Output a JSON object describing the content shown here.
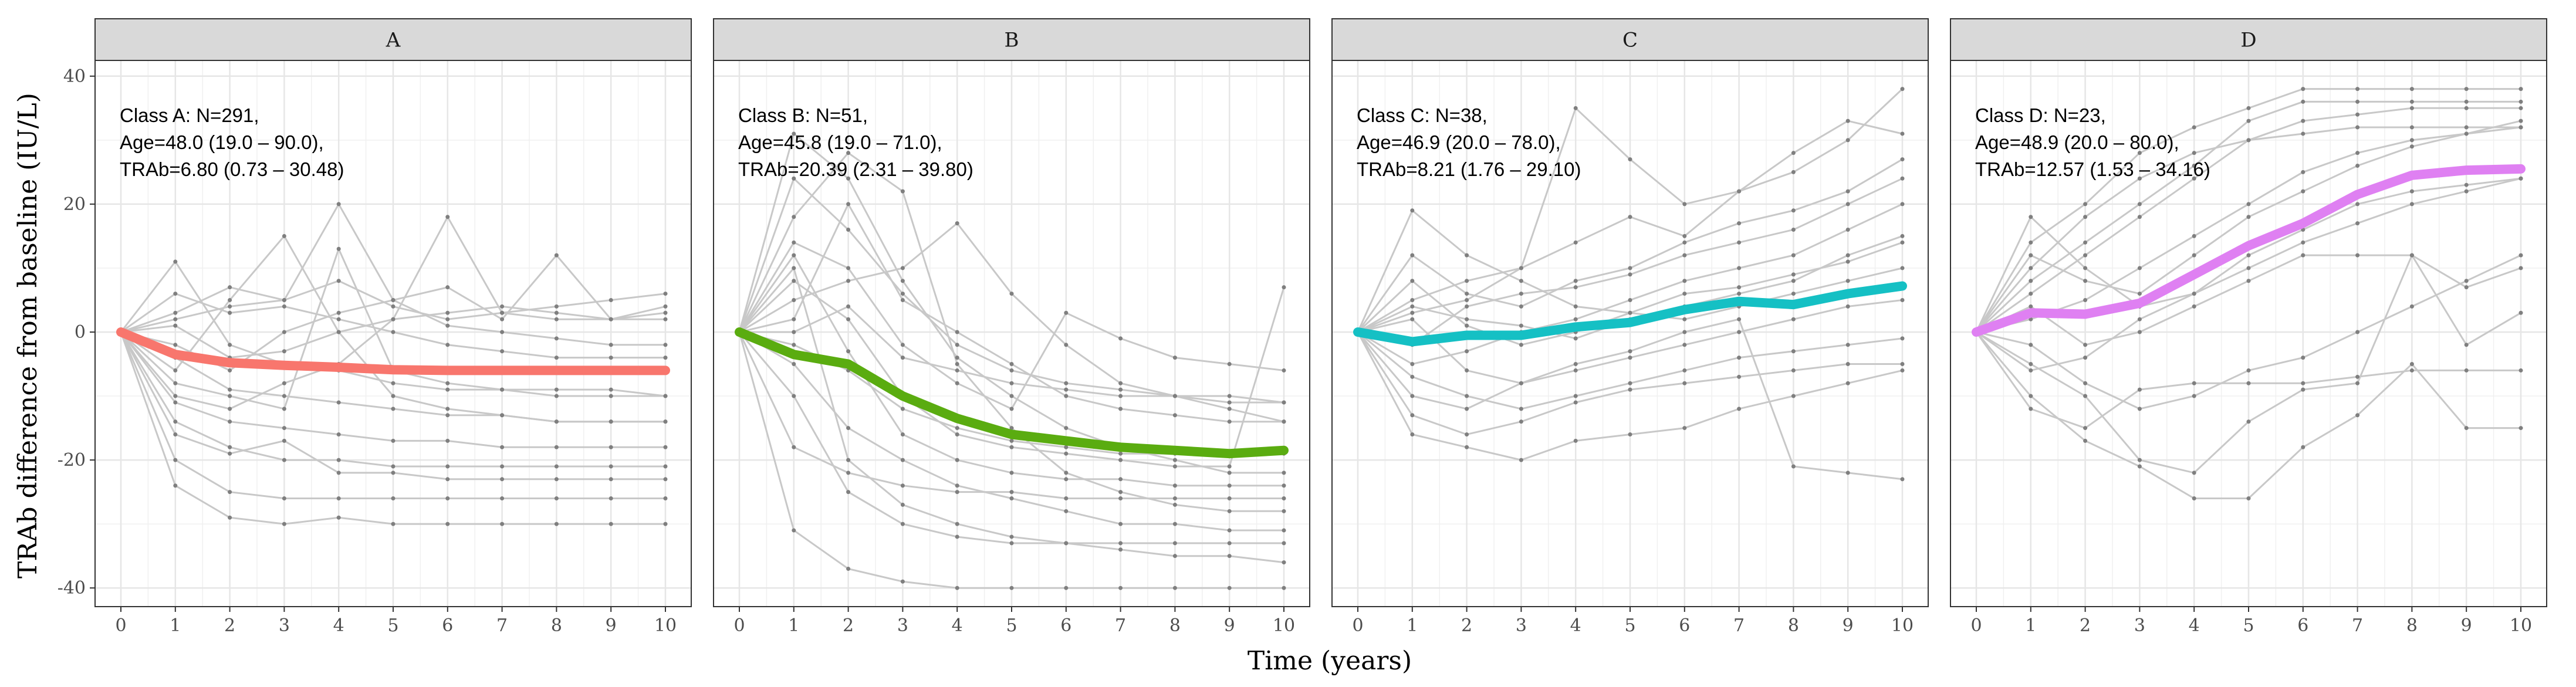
{
  "chart_data": {
    "type": "line",
    "ylabel": "TRAb difference from baseline (IU/L)",
    "xlabel": "Time (years)",
    "xlim": [
      0,
      10
    ],
    "ylim": [
      -42,
      42
    ],
    "xticks": [
      0,
      1,
      2,
      3,
      4,
      5,
      6,
      7,
      8,
      9,
      10
    ],
    "yticks": [
      40,
      20,
      0,
      -20,
      -40
    ],
    "x": [
      0,
      1,
      2,
      3,
      4,
      5,
      6,
      7,
      8,
      9,
      10
    ],
    "grid": true,
    "individual_color": "#c8c8c8",
    "point_color": "#7f7f7f",
    "panels": [
      {
        "strip": "A",
        "annotation": [
          "Class A: N=291,",
          "Age=48.0 (19.0 – 90.0),",
          "TRAb=6.80 (0.73 – 30.48)"
        ],
        "mean_color": "#f8766d",
        "mean": [
          0,
          -3.5,
          -4.8,
          -5.2,
          -5.5,
          -5.9,
          -6.0,
          -6.0,
          -6.0,
          -6.0,
          -6.0
        ],
        "individuals": [
          [
            0,
            11,
            -2,
            -5,
            -6,
            -8,
            -9,
            -9,
            -10,
            -10,
            -10
          ],
          [
            0,
            3,
            7,
            5,
            8,
            4,
            2,
            3,
            4,
            5,
            6
          ],
          [
            0,
            -24,
            -29,
            -30,
            -29,
            -30,
            -30,
            -30,
            -30,
            -30,
            -30
          ],
          [
            0,
            -20,
            -25,
            -26,
            -26,
            -26,
            -26,
            -26,
            -26,
            -26,
            -26
          ],
          [
            0,
            -6,
            5,
            15,
            0,
            -10,
            -12,
            -13,
            -14,
            -14,
            -14
          ],
          [
            0,
            2,
            4,
            5,
            20,
            5,
            1,
            0,
            -1,
            -2,
            -2
          ],
          [
            0,
            -10,
            -12,
            -8,
            -5,
            2,
            18,
            3,
            2,
            2,
            2
          ],
          [
            0,
            -2,
            -6,
            0,
            3,
            5,
            7,
            2,
            12,
            2,
            4
          ],
          [
            0,
            -14,
            -18,
            -20,
            -20,
            -21,
            -21,
            -21,
            -21,
            -21,
            -21
          ],
          [
            0,
            -8,
            -10,
            -12,
            13,
            -6,
            -8,
            -9,
            -9,
            -9,
            -10
          ],
          [
            0,
            6,
            3,
            4,
            2,
            0,
            -2,
            -3,
            -4,
            -4,
            -4
          ],
          [
            0,
            -16,
            -19,
            -17,
            -22,
            -22,
            -23,
            -23,
            -23,
            -23,
            -23
          ],
          [
            0,
            1,
            -4,
            -3,
            0,
            2,
            3,
            4,
            3,
            2,
            3
          ],
          [
            0,
            -11,
            -14,
            -15,
            -16,
            -17,
            -17,
            -18,
            -18,
            -18,
            -18
          ],
          [
            0,
            -4,
            -9,
            -10,
            -11,
            -12,
            -13,
            -13,
            -14,
            -14,
            -14
          ]
        ]
      },
      {
        "strip": "B",
        "annotation": [
          "Class B: N=51,",
          "Age=45.8 (19.0 – 71.0),",
          "TRAb=20.39 (2.31 – 39.80)"
        ],
        "mean_color": "#5aac10",
        "mean": [
          0,
          -3.5,
          -5.0,
          -10.0,
          -13.5,
          -16.0,
          -17.0,
          -18.0,
          -18.5,
          -19.0,
          -18.5
        ],
        "individuals": [
          [
            0,
            31,
            24,
            8,
            -4,
            -10,
            -15,
            -18,
            -20,
            -22,
            -22
          ],
          [
            0,
            18,
            28,
            22,
            -5,
            -15,
            -22,
            -25,
            -27,
            -28,
            -28
          ],
          [
            0,
            -31,
            -37,
            -39,
            -40,
            -40,
            -40,
            -40,
            -40,
            -40,
            -40
          ],
          [
            0,
            10,
            -20,
            -27,
            -30,
            -32,
            -33,
            -34,
            -35,
            -35,
            -36
          ],
          [
            0,
            5,
            8,
            10,
            17,
            6,
            -2,
            -8,
            -10,
            -12,
            -14
          ],
          [
            0,
            -10,
            -25,
            -30,
            -32,
            -33,
            -33,
            -33,
            -33,
            -33,
            -33
          ],
          [
            0,
            2,
            20,
            5,
            0,
            -5,
            -10,
            -12,
            -13,
            -14,
            -14
          ],
          [
            0,
            -5,
            -15,
            -20,
            -24,
            -26,
            -28,
            -30,
            -30,
            -31,
            -31
          ],
          [
            0,
            14,
            10,
            -2,
            -8,
            -12,
            3,
            -1,
            -4,
            -5,
            -6
          ],
          [
            0,
            -18,
            -22,
            -24,
            -25,
            -25,
            -26,
            -26,
            -26,
            -26,
            -26
          ],
          [
            0,
            8,
            2,
            -10,
            -16,
            -18,
            -19,
            -20,
            -21,
            -21,
            7
          ],
          [
            0,
            24,
            16,
            6,
            -2,
            -6,
            -8,
            -9,
            -10,
            -10,
            -11
          ],
          [
            0,
            -2,
            -6,
            -12,
            -15,
            -17,
            -18,
            -19,
            -19,
            -19,
            -19
          ],
          [
            0,
            12,
            -3,
            -16,
            -20,
            -22,
            -23,
            -23,
            -24,
            -24,
            -24
          ],
          [
            0,
            0,
            4,
            -4,
            -6,
            -8,
            -9,
            -10,
            -10,
            -11,
            -11
          ]
        ]
      },
      {
        "strip": "C",
        "annotation": [
          "Class C: N=38,",
          "Age=46.9 (20.0 – 78.0),",
          "TRAb=8.21 (1.76 – 29.10)"
        ],
        "mean_color": "#15c0c4",
        "mean": [
          0,
          -1.5,
          -0.5,
          -0.5,
          0.8,
          1.5,
          3.5,
          4.8,
          4.3,
          6.0,
          7.2
        ],
        "individuals": [
          [
            0,
            -16,
            -18,
            -20,
            -17,
            -16,
            -15,
            -12,
            -10,
            -8,
            -6
          ],
          [
            0,
            5,
            8,
            10,
            35,
            27,
            20,
            22,
            25,
            30,
            38
          ],
          [
            0,
            -10,
            -12,
            -8,
            -5,
            -3,
            0,
            2,
            -21,
            -22,
            -23
          ],
          [
            0,
            19,
            12,
            8,
            4,
            3,
            2,
            4,
            6,
            8,
            10
          ],
          [
            0,
            3,
            5,
            10,
            14,
            18,
            15,
            22,
            28,
            33,
            31
          ],
          [
            0,
            -5,
            -3,
            0,
            2,
            5,
            8,
            10,
            12,
            16,
            20
          ],
          [
            0,
            -13,
            -16,
            -14,
            -11,
            -9,
            -8,
            -7,
            -6,
            -5,
            -5
          ],
          [
            0,
            8,
            1,
            -2,
            0,
            3,
            6,
            7,
            9,
            11,
            14
          ],
          [
            0,
            -2,
            4,
            6,
            7,
            9,
            12,
            14,
            16,
            20,
            24
          ],
          [
            0,
            2,
            -6,
            -8,
            -6,
            -4,
            -2,
            0,
            2,
            4,
            5
          ],
          [
            0,
            12,
            6,
            4,
            8,
            10,
            14,
            17,
            19,
            22,
            27
          ],
          [
            0,
            -7,
            -10,
            -12,
            -10,
            -8,
            -6,
            -4,
            -3,
            -2,
            -1
          ],
          [
            0,
            4,
            2,
            1,
            -1,
            2,
            4,
            6,
            8,
            12,
            15
          ]
        ]
      },
      {
        "strip": "D",
        "annotation": [
          "Class D: N=23,",
          "Age=48.9 (20.0 – 80.0),",
          "TRAb=12.57 (1.53 – 34.16)"
        ],
        "mean_color": "#df80f2",
        "mean": [
          0,
          3.0,
          2.8,
          4.5,
          9.0,
          13.5,
          17.0,
          21.5,
          24.5,
          25.3,
          25.5
        ],
        "individuals": [
          [
            0,
            14,
            20,
            28,
            32,
            35,
            38,
            38,
            38,
            38,
            38
          ],
          [
            0,
            -10,
            -17,
            -21,
            -26,
            -26,
            -18,
            -13,
            -5,
            -15,
            -15
          ],
          [
            0,
            6,
            12,
            18,
            24,
            30,
            33,
            34,
            35,
            35,
            35
          ],
          [
            0,
            2,
            5,
            10,
            15,
            20,
            25,
            28,
            30,
            31,
            32
          ],
          [
            0,
            -5,
            -10,
            -20,
            -22,
            -14,
            -9,
            -8,
            12,
            7,
            10
          ],
          [
            0,
            18,
            10,
            4,
            6,
            10,
            14,
            17,
            20,
            22,
            24
          ],
          [
            0,
            -2,
            -8,
            -12,
            -10,
            -6,
            -4,
            0,
            4,
            8,
            12
          ],
          [
            0,
            8,
            14,
            20,
            26,
            33,
            36,
            36,
            36,
            36,
            36
          ],
          [
            0,
            12,
            8,
            6,
            12,
            18,
            22,
            26,
            29,
            31,
            33
          ],
          [
            0,
            -12,
            -15,
            -9,
            -8,
            -8,
            -8,
            -7,
            -6,
            -6,
            -6
          ],
          [
            0,
            4,
            -2,
            0,
            4,
            8,
            12,
            12,
            12,
            -2,
            3
          ],
          [
            0,
            10,
            18,
            24,
            28,
            30,
            31,
            32,
            32,
            32,
            32
          ],
          [
            0,
            -6,
            -4,
            2,
            6,
            12,
            16,
            20,
            22,
            23,
            24
          ]
        ]
      }
    ]
  }
}
